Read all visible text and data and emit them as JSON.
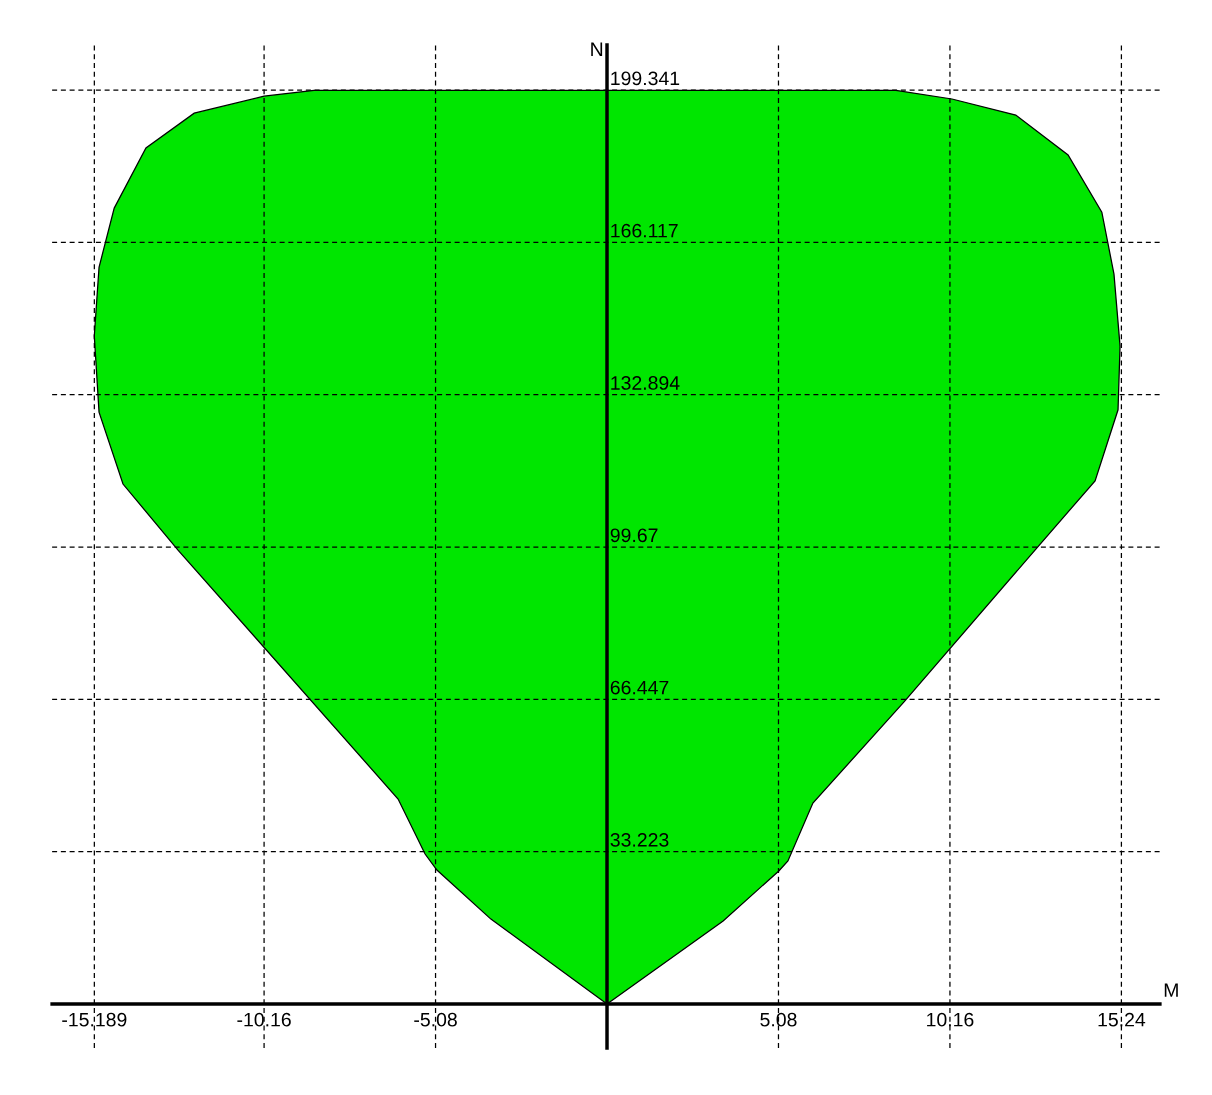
{
  "chart_data": {
    "type": "area",
    "xlabel": "M",
    "ylabel": "N",
    "xlim": [
      -16.44,
      16.38
    ],
    "ylim": [
      -9.6,
      209.2
    ],
    "xticks": [
      -15.189,
      -10.16,
      -5.08,
      5.08,
      10.16,
      15.24
    ],
    "yticks": [
      33.223,
      66.447,
      99.67,
      132.894,
      166.117,
      199.341
    ],
    "grid": true,
    "series": [
      {
        "color": "#00e600",
        "x": [
          0,
          3.44,
          5.09,
          5.36,
          6.1,
          8.8,
          12.68,
          14.46,
          15.14,
          15.2,
          15.02,
          14.66,
          13.66,
          12.11,
          10.22,
          8.56,
          -8.68,
          -10.16,
          -12.23,
          -13.66,
          -14.6,
          -15.05,
          -15.19,
          -15.05,
          -14.34,
          -12.71,
          -6.19,
          -5.39,
          -5.04,
          -3.44,
          0
        ],
        "values": [
          0,
          18.1,
          29.0,
          31.2,
          43.8,
          65.9,
          99.0,
          114.1,
          129.6,
          143.5,
          159.2,
          172.7,
          185.2,
          193.9,
          197.4,
          199.3,
          199.3,
          198.0,
          194.3,
          186.7,
          173.6,
          160.7,
          145.7,
          129.1,
          113.4,
          99.0,
          44.7,
          32.7,
          29.2,
          18.5,
          0
        ]
      }
    ]
  }
}
